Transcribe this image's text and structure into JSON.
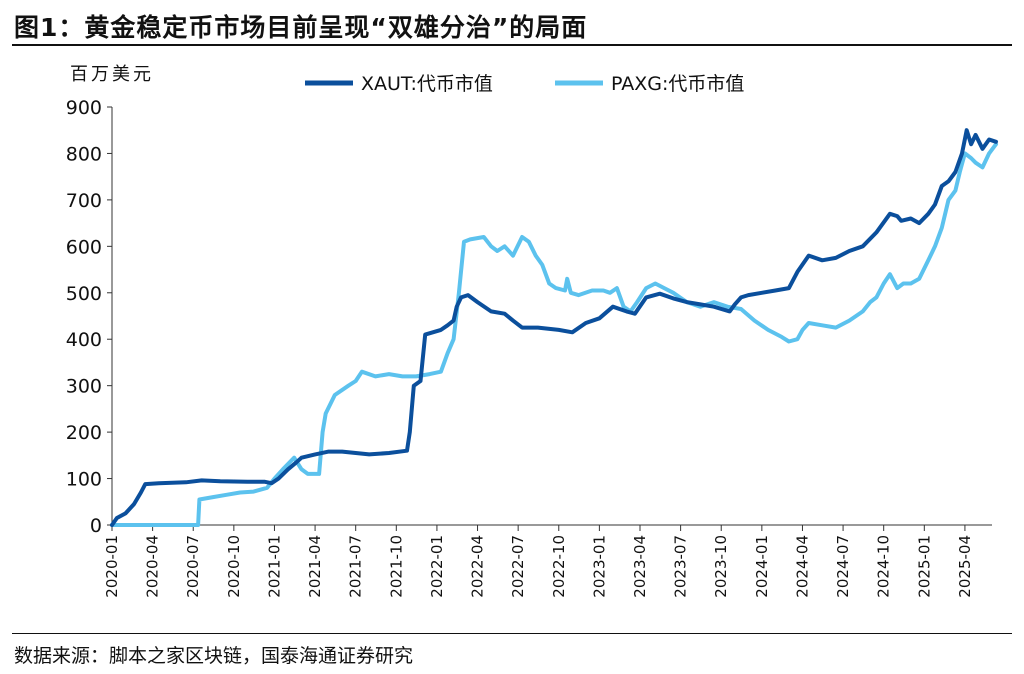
{
  "figure": {
    "title": "图1：黄金稳定币市场目前呈现“双雄分治”的局面",
    "source": "数据来源：脚本之家区块链，国泰海通证券研究"
  },
  "chart_data": {
    "type": "line",
    "ylabel": "百万美元",
    "xlabel": "",
    "ylim": [
      0,
      900
    ],
    "yticks": [
      0,
      100,
      200,
      300,
      400,
      500,
      600,
      700,
      800,
      900
    ],
    "xlim": [
      "2020-01",
      "2025-06"
    ],
    "xticks": [
      "2020-01",
      "2020-04",
      "2020-07",
      "2020-10",
      "2021-01",
      "2021-04",
      "2021-07",
      "2021-10",
      "2022-01",
      "2022-04",
      "2022-07",
      "2022-10",
      "2023-01",
      "2023-04",
      "2023-07",
      "2023-10",
      "2024-01",
      "2024-04",
      "2024-07",
      "2024-10",
      "2025-01",
      "2025-04"
    ],
    "grid": false,
    "legend": "top-center",
    "series": [
      {
        "name": "XAUT:代币市值",
        "color": "#0b4f9c",
        "points": [
          [
            "2020-01-01",
            0
          ],
          [
            "2020-01-12",
            15
          ],
          [
            "2020-02-01",
            25
          ],
          [
            "2020-02-20",
            45
          ],
          [
            "2020-03-05",
            70
          ],
          [
            "2020-03-15",
            88
          ],
          [
            "2020-04-15",
            90
          ],
          [
            "2020-06-15",
            92
          ],
          [
            "2020-07-20",
            96
          ],
          [
            "2020-09-01",
            94
          ],
          [
            "2020-11-01",
            93
          ],
          [
            "2020-12-10",
            93
          ],
          [
            "2020-12-25",
            90
          ],
          [
            "2021-01-10",
            100
          ],
          [
            "2021-02-01",
            120
          ],
          [
            "2021-02-20",
            135
          ],
          [
            "2021-03-01",
            145
          ],
          [
            "2021-04-01",
            152
          ],
          [
            "2021-05-01",
            158
          ],
          [
            "2021-06-01",
            158
          ],
          [
            "2021-07-01",
            155
          ],
          [
            "2021-08-01",
            152
          ],
          [
            "2021-09-15",
            155
          ],
          [
            "2021-10-25",
            160
          ],
          [
            "2021-11-01",
            200
          ],
          [
            "2021-11-10",
            300
          ],
          [
            "2021-11-25",
            310
          ],
          [
            "2021-12-05",
            410
          ],
          [
            "2022-01-10",
            420
          ],
          [
            "2022-01-25",
            430
          ],
          [
            "2022-02-08",
            440
          ],
          [
            "2022-02-15",
            470
          ],
          [
            "2022-02-25",
            490
          ],
          [
            "2022-03-10",
            495
          ],
          [
            "2022-04-01",
            480
          ],
          [
            "2022-05-01",
            460
          ],
          [
            "2022-06-01",
            455
          ],
          [
            "2022-06-20",
            440
          ],
          [
            "2022-07-10",
            425
          ],
          [
            "2022-08-15",
            425
          ],
          [
            "2022-10-01",
            420
          ],
          [
            "2022-11-01",
            415
          ],
          [
            "2022-12-01",
            435
          ],
          [
            "2023-01-01",
            445
          ],
          [
            "2023-02-01",
            470
          ],
          [
            "2023-03-01",
            460
          ],
          [
            "2023-03-20",
            455
          ],
          [
            "2023-04-15",
            490
          ],
          [
            "2023-05-15",
            498
          ],
          [
            "2023-06-15",
            488
          ],
          [
            "2023-07-15",
            480
          ],
          [
            "2023-08-15",
            475
          ],
          [
            "2023-09-15",
            470
          ],
          [
            "2023-10-20",
            460
          ],
          [
            "2023-11-01",
            475
          ],
          [
            "2023-11-15",
            490
          ],
          [
            "2023-12-01",
            495
          ],
          [
            "2024-01-01",
            500
          ],
          [
            "2024-02-01",
            505
          ],
          [
            "2024-03-01",
            510
          ],
          [
            "2024-03-20",
            545
          ],
          [
            "2024-04-15",
            580
          ],
          [
            "2024-05-15",
            570
          ],
          [
            "2024-06-15",
            575
          ],
          [
            "2024-07-15",
            590
          ],
          [
            "2024-08-15",
            600
          ],
          [
            "2024-09-15",
            630
          ],
          [
            "2024-10-15",
            670
          ],
          [
            "2024-11-01",
            665
          ],
          [
            "2024-11-10",
            655
          ],
          [
            "2024-12-01",
            660
          ],
          [
            "2024-12-20",
            650
          ],
          [
            "2025-01-10",
            670
          ],
          [
            "2025-01-25",
            690
          ],
          [
            "2025-02-10",
            730
          ],
          [
            "2025-02-25",
            740
          ],
          [
            "2025-03-10",
            760
          ],
          [
            "2025-03-25",
            800
          ],
          [
            "2025-04-05",
            850
          ],
          [
            "2025-04-15",
            820
          ],
          [
            "2025-04-25",
            840
          ],
          [
            "2025-05-10",
            810
          ],
          [
            "2025-05-25",
            830
          ],
          [
            "2025-06-10",
            825
          ]
        ]
      },
      {
        "name": "PAXG:代币市值",
        "color": "#5cc2ee",
        "points": [
          [
            "2020-01-01",
            0
          ],
          [
            "2020-07-12",
            0
          ],
          [
            "2020-07-15",
            55
          ],
          [
            "2020-08-15",
            60
          ],
          [
            "2020-09-15",
            65
          ],
          [
            "2020-10-15",
            70
          ],
          [
            "2020-11-15",
            72
          ],
          [
            "2020-12-15",
            80
          ],
          [
            "2021-01-01",
            100
          ],
          [
            "2021-01-20",
            120
          ],
          [
            "2021-02-15",
            145
          ],
          [
            "2021-03-01",
            120
          ],
          [
            "2021-03-15",
            110
          ],
          [
            "2021-04-10",
            110
          ],
          [
            "2021-04-18",
            200
          ],
          [
            "2021-04-25",
            240
          ],
          [
            "2021-05-15",
            280
          ],
          [
            "2021-06-15",
            300
          ],
          [
            "2021-07-01",
            310
          ],
          [
            "2021-07-15",
            330
          ],
          [
            "2021-08-15",
            320
          ],
          [
            "2021-09-15",
            325
          ],
          [
            "2021-10-15",
            320
          ],
          [
            "2021-11-15",
            320
          ],
          [
            "2021-12-15",
            325
          ],
          [
            "2022-01-10",
            330
          ],
          [
            "2022-01-25",
            370
          ],
          [
            "2022-02-08",
            400
          ],
          [
            "2022-02-20",
            500
          ],
          [
            "2022-03-01",
            610
          ],
          [
            "2022-03-15",
            615
          ],
          [
            "2022-04-15",
            620
          ],
          [
            "2022-05-01",
            600
          ],
          [
            "2022-05-15",
            590
          ],
          [
            "2022-06-01",
            600
          ],
          [
            "2022-06-20",
            580
          ],
          [
            "2022-07-10",
            620
          ],
          [
            "2022-07-25",
            610
          ],
          [
            "2022-08-10",
            580
          ],
          [
            "2022-08-25",
            560
          ],
          [
            "2022-09-10",
            520
          ],
          [
            "2022-09-25",
            510
          ],
          [
            "2022-10-15",
            505
          ],
          [
            "2022-10-20",
            530
          ],
          [
            "2022-10-28",
            500
          ],
          [
            "2022-11-15",
            495
          ],
          [
            "2022-12-15",
            505
          ],
          [
            "2023-01-10",
            505
          ],
          [
            "2023-01-25",
            500
          ],
          [
            "2023-02-10",
            510
          ],
          [
            "2023-02-25",
            470
          ],
          [
            "2023-03-10",
            460
          ],
          [
            "2023-03-25",
            480
          ],
          [
            "2023-04-15",
            510
          ],
          [
            "2023-05-05",
            520
          ],
          [
            "2023-05-25",
            510
          ],
          [
            "2023-06-15",
            500
          ],
          [
            "2023-07-15",
            480
          ],
          [
            "2023-08-15",
            470
          ],
          [
            "2023-09-15",
            480
          ],
          [
            "2023-10-15",
            470
          ],
          [
            "2023-11-15",
            465
          ],
          [
            "2023-12-15",
            440
          ],
          [
            "2024-01-15",
            420
          ],
          [
            "2024-02-15",
            405
          ],
          [
            "2024-03-01",
            395
          ],
          [
            "2024-03-20",
            400
          ],
          [
            "2024-04-01",
            420
          ],
          [
            "2024-04-15",
            435
          ],
          [
            "2024-05-15",
            430
          ],
          [
            "2024-06-15",
            425
          ],
          [
            "2024-07-15",
            440
          ],
          [
            "2024-08-15",
            460
          ],
          [
            "2024-09-01",
            480
          ],
          [
            "2024-09-15",
            490
          ],
          [
            "2024-10-01",
            520
          ],
          [
            "2024-10-15",
            540
          ],
          [
            "2024-11-01",
            510
          ],
          [
            "2024-11-15",
            520
          ],
          [
            "2024-12-01",
            520
          ],
          [
            "2024-12-20",
            530
          ],
          [
            "2025-01-10",
            570
          ],
          [
            "2025-01-25",
            600
          ],
          [
            "2025-02-10",
            640
          ],
          [
            "2025-02-25",
            700
          ],
          [
            "2025-03-10",
            720
          ],
          [
            "2025-03-20",
            760
          ],
          [
            "2025-04-01",
            800
          ],
          [
            "2025-04-15",
            790
          ],
          [
            "2025-04-25",
            780
          ],
          [
            "2025-05-10",
            770
          ],
          [
            "2025-05-25",
            800
          ],
          [
            "2025-06-10",
            820
          ]
        ]
      }
    ]
  }
}
